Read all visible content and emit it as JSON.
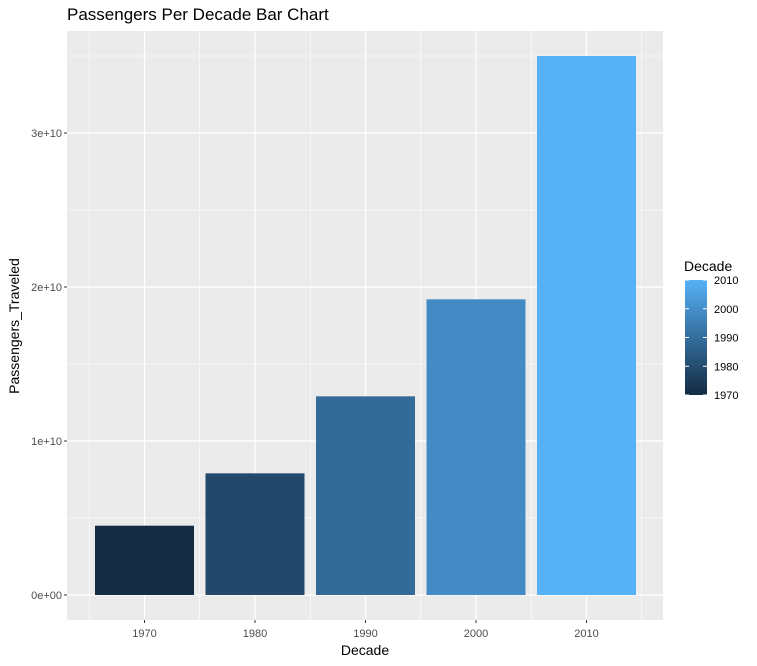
{
  "chart_data": {
    "type": "bar",
    "title": "Passengers Per Decade Bar Chart",
    "xlabel": "Decade",
    "ylabel": "Passengers_Traveled",
    "categories": [
      "1970",
      "1980",
      "1990",
      "2000",
      "2010"
    ],
    "values": [
      4500000000,
      7900000000,
      12900000000,
      19200000000,
      35000000000
    ],
    "ylim": [
      0,
      35000000000
    ],
    "y_ticks": [
      {
        "value": 0,
        "label": "0e+00"
      },
      {
        "value": 10000000000,
        "label": "1e+10"
      },
      {
        "value": 20000000000,
        "label": "2e+10"
      },
      {
        "value": 30000000000,
        "label": "3e+10"
      }
    ],
    "bar_colors": [
      "#132B43",
      "#22486A",
      "#336A98",
      "#448BC6",
      "#56B1F7"
    ],
    "grid": true,
    "legend": {
      "title": "Decade",
      "placement": "right",
      "labels": [
        "2010",
        "2000",
        "1990",
        "1980",
        "1970"
      ],
      "gradient_low": "#132B43",
      "gradient_high": "#56B1F7"
    }
  }
}
